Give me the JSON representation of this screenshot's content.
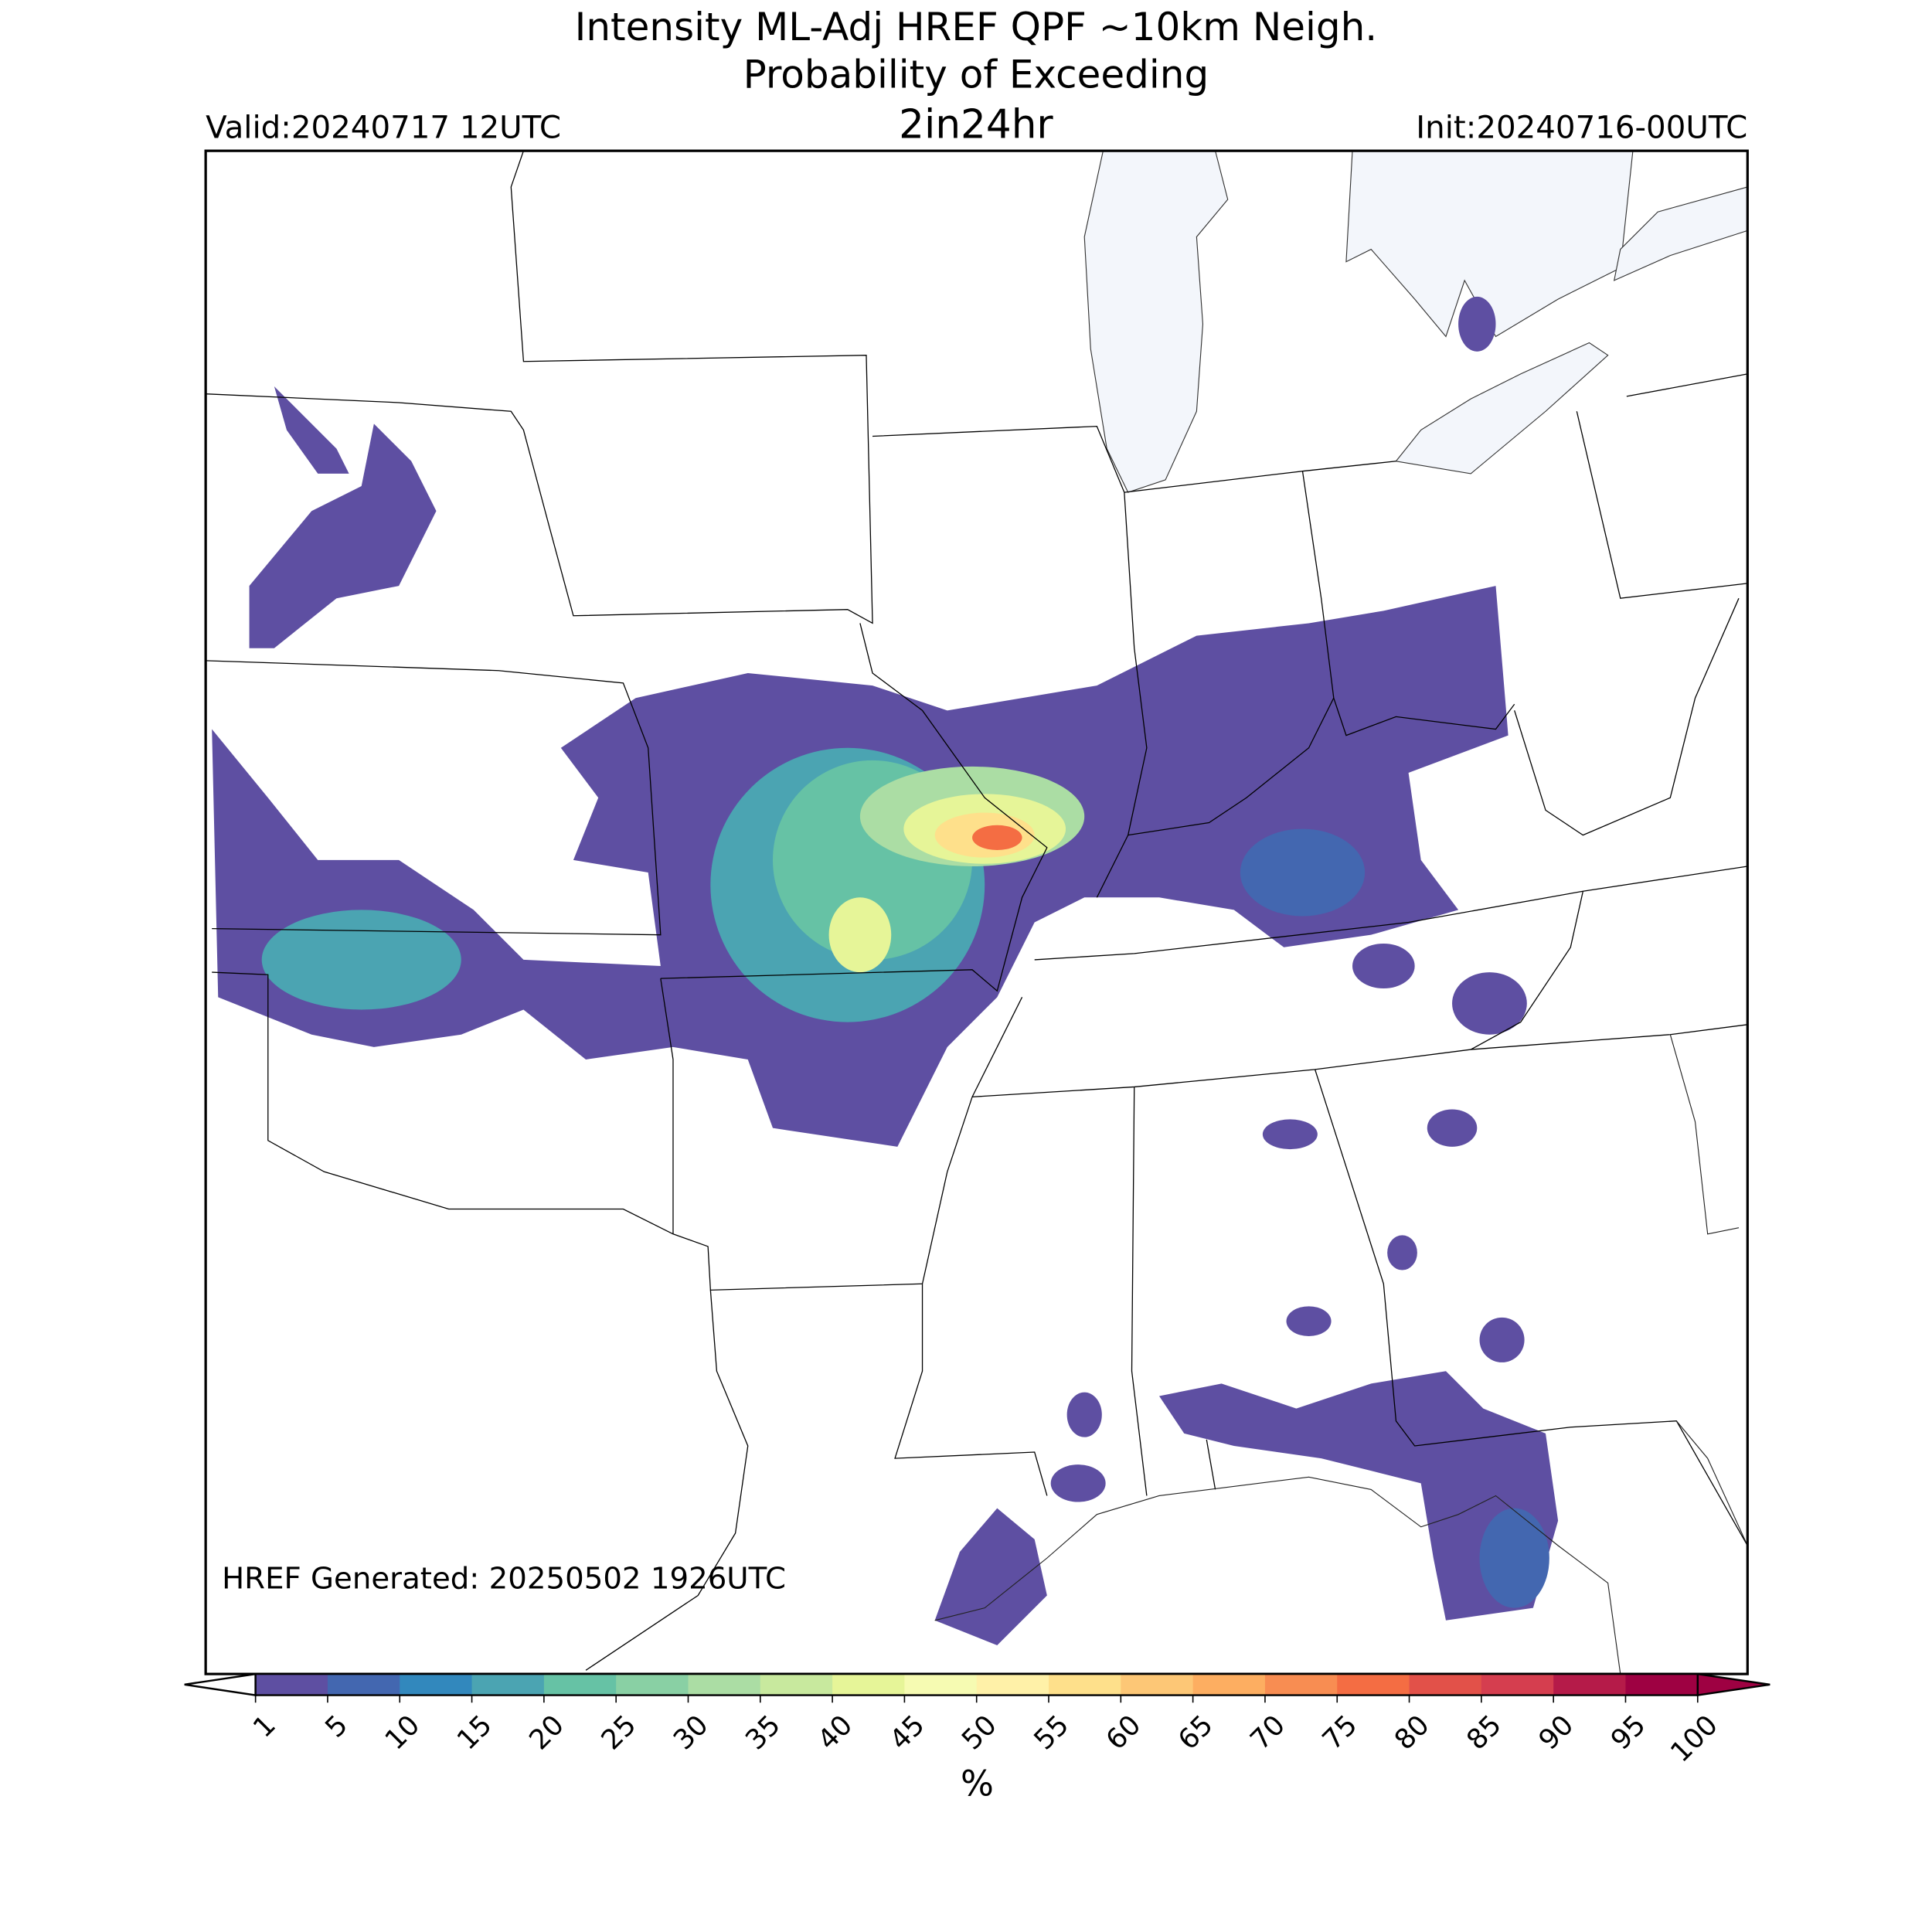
{
  "header": {
    "title_lines": [
      "Intensity ML-Adj HREF QPF ~10km Neigh.",
      "Probability of Exceeding"
    ],
    "threshold": "2in24hr",
    "valid": "Valid:20240717 12UTC",
    "init": "Init:20240716-00UTC"
  },
  "footer_note": "HREF Generated: 20250502 1926UTC",
  "colorbar": {
    "label": "%",
    "ticks": [
      1,
      5,
      10,
      15,
      20,
      25,
      30,
      35,
      40,
      45,
      50,
      55,
      60,
      65,
      70,
      75,
      80,
      85,
      90,
      95,
      100
    ],
    "colors": [
      "#5e4fa2",
      "#4367b0",
      "#3288bd",
      "#4ba4b2",
      "#66c2a5",
      "#89d0a4",
      "#abdda4",
      "#c8e99e",
      "#e6f598",
      "#f6fbb2",
      "#fff1a8",
      "#fee08b",
      "#fdc776",
      "#fdae61",
      "#f88d52",
      "#f46d43",
      "#e25149",
      "#d53e4f",
      "#b51b49",
      "#9e0142"
    ],
    "under_color": "#ffffff",
    "over_color": "#9e0142"
  }
}
